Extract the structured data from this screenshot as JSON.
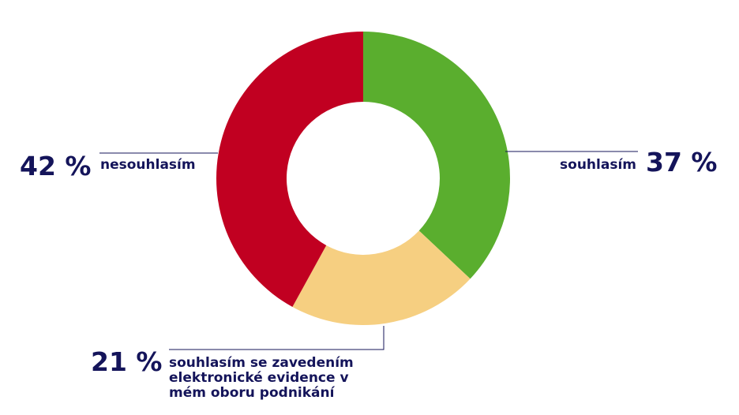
{
  "chart_data": {
    "type": "donut",
    "categories": [
      "souhlasím",
      "souhlasím se zavedením elektronické evidence v mém oboru podnikání",
      "nesouhlasím"
    ],
    "values": [
      37,
      21,
      42
    ],
    "value_labels": [
      "37 %",
      "21 %",
      "42 %"
    ],
    "colors": [
      "#5aae2e",
      "#f6cf81",
      "#c10021"
    ]
  }
}
